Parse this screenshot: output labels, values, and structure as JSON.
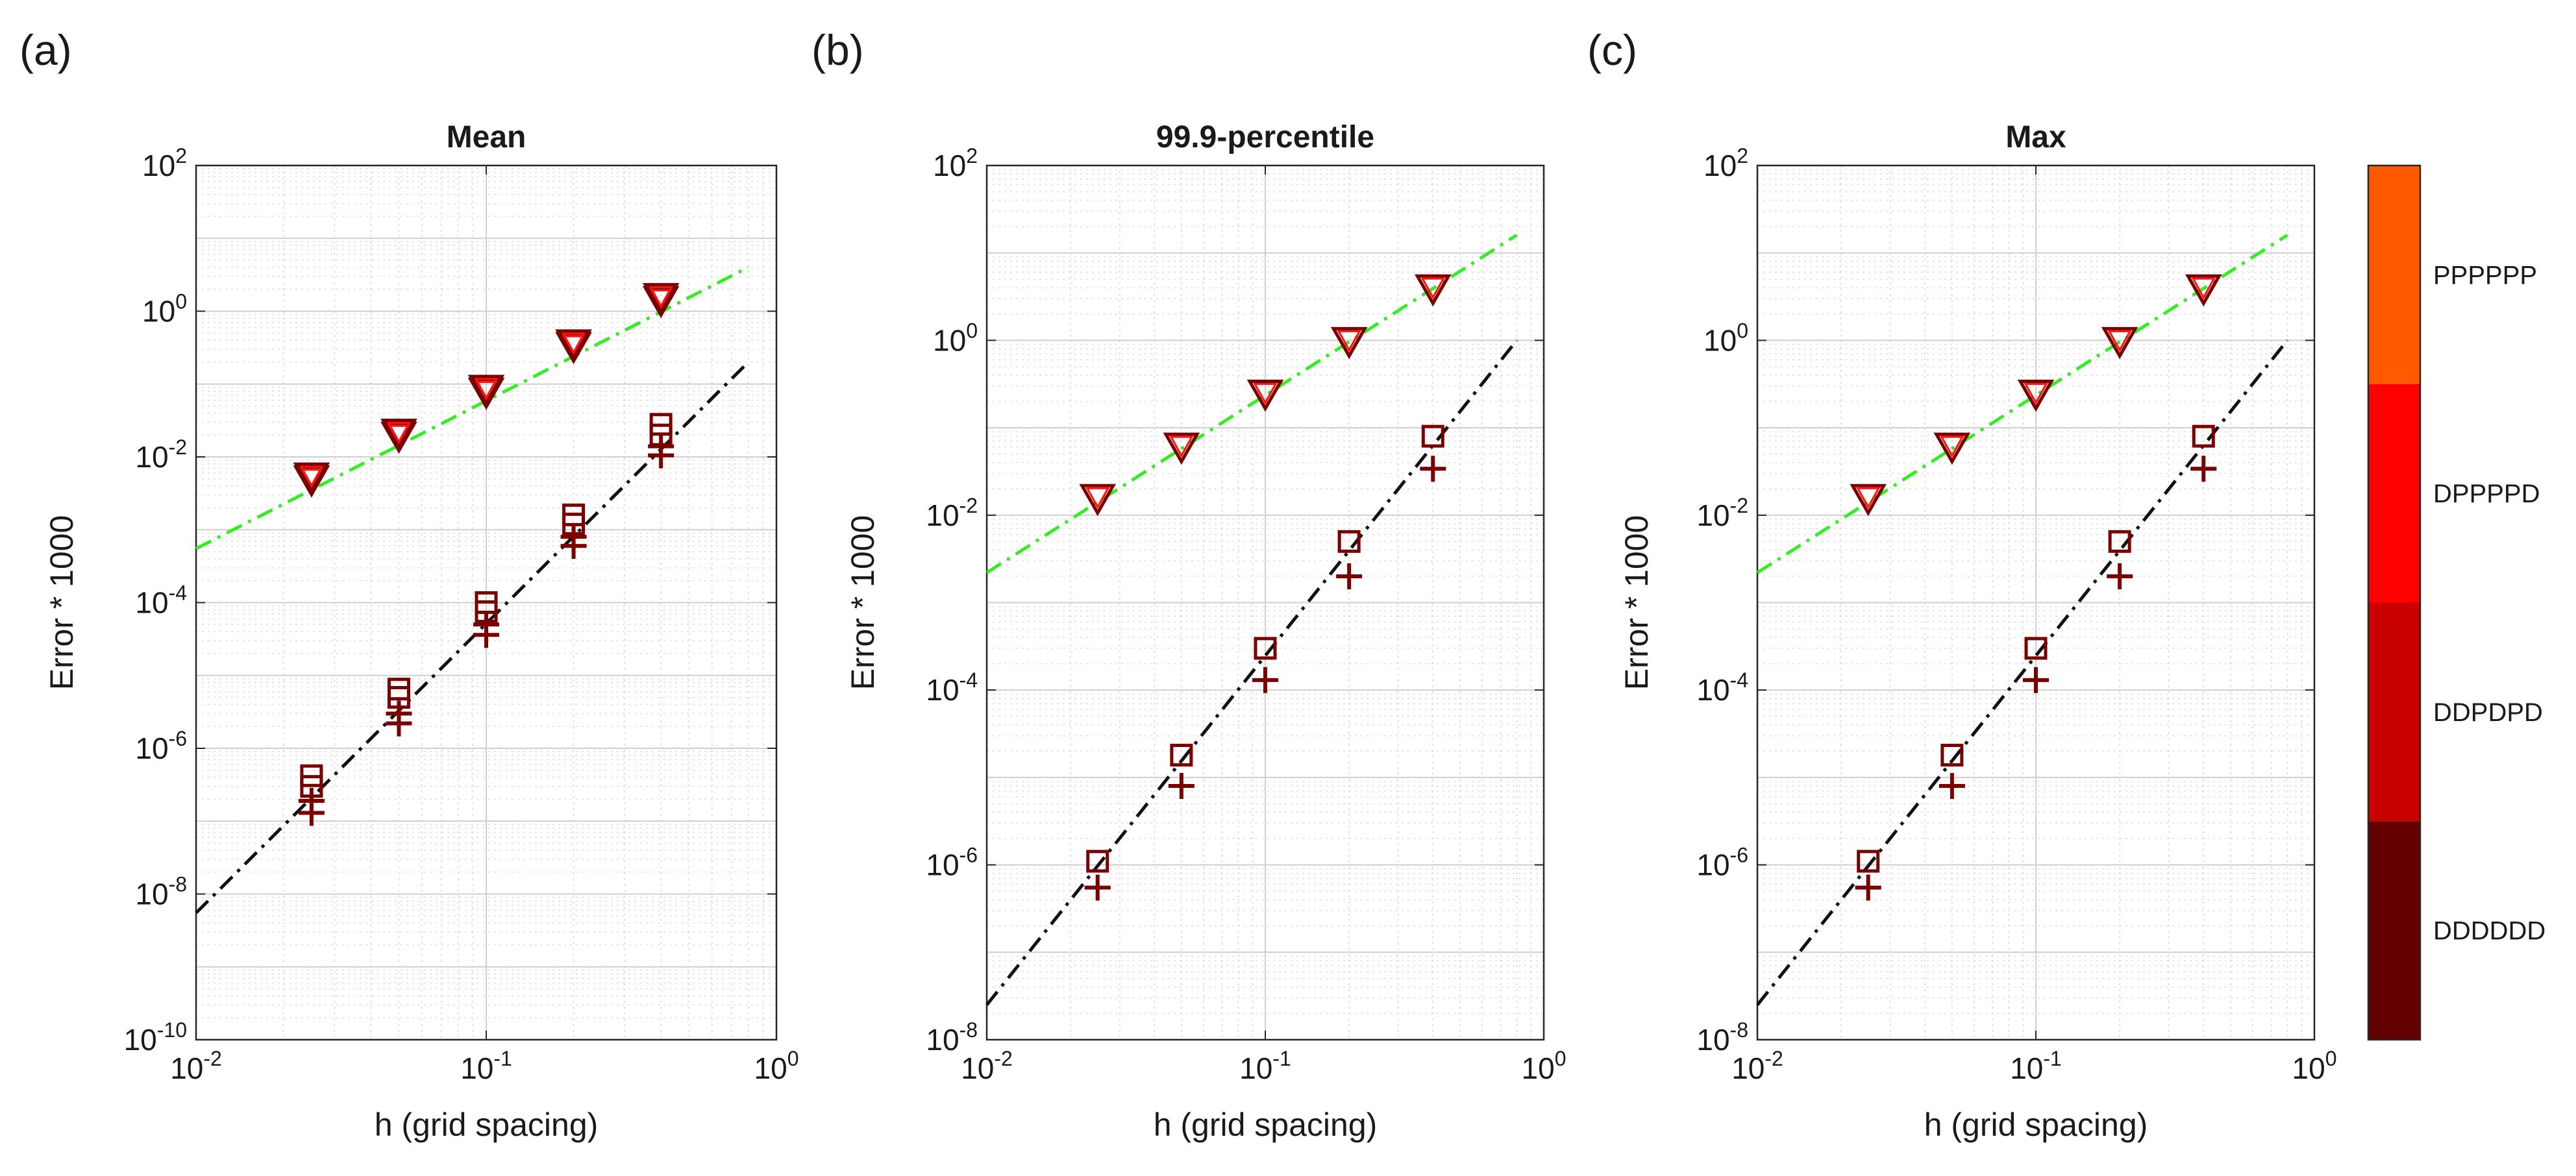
{
  "figure": {
    "colorbar": {
      "labels": [
        "PPPPPP",
        "DPPPPD",
        "DDPDPD",
        "DDDDDD"
      ],
      "colors": [
        "#ff5a00",
        "#ff0000",
        "#c80000",
        "#640000"
      ]
    },
    "styles": {
      "green_line": "#33ee22",
      "black_line": "#111111",
      "marker_outline": "#7a0000",
      "triangle_fill": "#ff1010",
      "square_fill": "#e00000"
    }
  },
  "chart_data": [
    {
      "panel_label": "(a)",
      "type": "scatter",
      "title": "Mean",
      "xlabel": "h (grid spacing)",
      "ylabel": "Error * 1000",
      "xscale": "log",
      "yscale": "log",
      "xlim": [
        0.01,
        1
      ],
      "ylim": [
        1e-10,
        100
      ],
      "xticks": [
        {
          "value": 0.01,
          "base": "10",
          "exp": "-2"
        },
        {
          "value": 0.1,
          "base": "10",
          "exp": "-1"
        },
        {
          "value": 1,
          "base": "10",
          "exp": "0"
        }
      ],
      "yticks": [
        {
          "value": 1e-10,
          "base": "10",
          "exp": "-10"
        },
        {
          "value": 1e-08,
          "base": "10",
          "exp": "-8"
        },
        {
          "value": 1e-06,
          "base": "10",
          "exp": "-6"
        },
        {
          "value": 0.0001,
          "base": "10",
          "exp": "-4"
        },
        {
          "value": 0.01,
          "base": "10",
          "exp": "-2"
        },
        {
          "value": 1,
          "base": "10",
          "exp": "0"
        },
        {
          "value": 100,
          "base": "10",
          "exp": "2"
        }
      ],
      "grid": true,
      "lines": [
        {
          "name": "first-order reference",
          "style": "dash-dot",
          "color": "green",
          "x": [
            0.01,
            0.8
          ],
          "y": [
            0.00055,
            4.0
          ]
        },
        {
          "name": "second-order reference",
          "style": "dash-dot",
          "color": "black",
          "x": [
            0.01,
            0.8
          ],
          "y": [
            5.5e-09,
            0.2
          ]
        }
      ],
      "x": [
        0.025,
        0.05,
        0.1,
        0.2,
        0.4
      ],
      "series": [
        {
          "name": "triangles",
          "marker": "triangle",
          "values": [
            0.005,
            0.02,
            0.08,
            0.34,
            1.45
          ]
        },
        {
          "name": "triangles (upper)",
          "marker": "triangle",
          "values": [
            0.0055,
            0.022,
            0.088,
            0.37,
            1.6
          ]
        },
        {
          "name": "squares",
          "marker": "square",
          "values": [
            3e-07,
            5e-06,
            7.5e-05,
            0.0012,
            0.02
          ]
        },
        {
          "name": "squares (upper)",
          "marker": "square",
          "values": [
            4.2e-07,
            6.5e-06,
            0.0001,
            0.0016,
            0.028
          ]
        },
        {
          "name": "plus",
          "marker": "plus",
          "values": [
            1.3e-07,
            2.2e-06,
            3.6e-05,
            0.0006,
            0.0105
          ]
        },
        {
          "name": "plus (upper)",
          "marker": "plus",
          "values": [
            1.9e-07,
            3e-06,
            5e-05,
            0.0008,
            0.014
          ]
        }
      ]
    },
    {
      "panel_label": "(b)",
      "type": "scatter",
      "title": "99.9-percentile",
      "xlabel": "h (grid spacing)",
      "ylabel": "Error * 1000",
      "xscale": "log",
      "yscale": "log",
      "xlim": [
        0.01,
        1
      ],
      "ylim": [
        1e-08,
        100
      ],
      "xticks": [
        {
          "value": 0.01,
          "base": "10",
          "exp": "-2"
        },
        {
          "value": 0.1,
          "base": "10",
          "exp": "-1"
        },
        {
          "value": 1,
          "base": "10",
          "exp": "0"
        }
      ],
      "yticks": [
        {
          "value": 1e-08,
          "base": "10",
          "exp": "-8"
        },
        {
          "value": 1e-06,
          "base": "10",
          "exp": "-6"
        },
        {
          "value": 0.0001,
          "base": "10",
          "exp": "-4"
        },
        {
          "value": 0.01,
          "base": "10",
          "exp": "-2"
        },
        {
          "value": 1,
          "base": "10",
          "exp": "0"
        },
        {
          "value": 100,
          "base": "10",
          "exp": "2"
        }
      ],
      "grid": true,
      "lines": [
        {
          "name": "first-order reference",
          "style": "dash-dot",
          "color": "green",
          "x": [
            0.01,
            0.8
          ],
          "y": [
            0.0022,
            16
          ]
        },
        {
          "name": "second-order reference",
          "style": "dash-dot",
          "color": "black",
          "x": [
            0.01,
            0.8
          ],
          "y": [
            2.5e-08,
            1.0
          ]
        }
      ],
      "x": [
        0.025,
        0.05,
        0.1,
        0.2,
        0.4
      ],
      "series": [
        {
          "name": "triangles",
          "marker": "triangle",
          "values": [
            0.016,
            0.062,
            0.25,
            1.0,
            4.0
          ]
        },
        {
          "name": "squares",
          "marker": "square",
          "values": [
            1.1e-06,
            1.8e-05,
            0.0003,
            0.005,
            0.08
          ]
        },
        {
          "name": "plus",
          "marker": "plus",
          "values": [
            5.5e-07,
            8e-06,
            0.00013,
            0.002,
            0.034
          ]
        }
      ]
    },
    {
      "panel_label": "(c)",
      "type": "scatter",
      "title": "Max",
      "xlabel": "h (grid spacing)",
      "ylabel": "Error * 1000",
      "xscale": "log",
      "yscale": "log",
      "xlim": [
        0.01,
        1
      ],
      "ylim": [
        1e-08,
        100
      ],
      "xticks": [
        {
          "value": 0.01,
          "base": "10",
          "exp": "-2"
        },
        {
          "value": 0.1,
          "base": "10",
          "exp": "-1"
        },
        {
          "value": 1,
          "base": "10",
          "exp": "0"
        }
      ],
      "yticks": [
        {
          "value": 1e-08,
          "base": "10",
          "exp": "-8"
        },
        {
          "value": 1e-06,
          "base": "10",
          "exp": "-6"
        },
        {
          "value": 0.0001,
          "base": "10",
          "exp": "-4"
        },
        {
          "value": 0.01,
          "base": "10",
          "exp": "-2"
        },
        {
          "value": 1,
          "base": "10",
          "exp": "0"
        },
        {
          "value": 100,
          "base": "10",
          "exp": "2"
        }
      ],
      "grid": true,
      "lines": [
        {
          "name": "first-order reference",
          "style": "dash-dot",
          "color": "green",
          "x": [
            0.01,
            0.8
          ],
          "y": [
            0.0022,
            16
          ]
        },
        {
          "name": "second-order reference",
          "style": "dash-dot",
          "color": "black",
          "x": [
            0.01,
            0.8
          ],
          "y": [
            2.5e-08,
            1.0
          ]
        }
      ],
      "x": [
        0.025,
        0.05,
        0.1,
        0.2,
        0.4
      ],
      "series": [
        {
          "name": "triangles",
          "marker": "triangle",
          "values": [
            0.016,
            0.062,
            0.25,
            1.0,
            4.0
          ]
        },
        {
          "name": "squares",
          "marker": "square",
          "values": [
            1.1e-06,
            1.8e-05,
            0.0003,
            0.005,
            0.08
          ]
        },
        {
          "name": "plus",
          "marker": "plus",
          "values": [
            5.5e-07,
            8e-06,
            0.00013,
            0.002,
            0.034
          ]
        }
      ]
    }
  ]
}
